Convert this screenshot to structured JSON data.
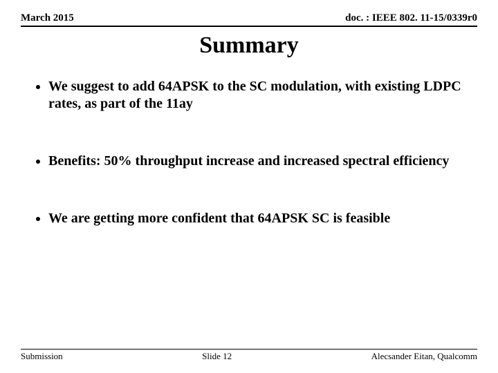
{
  "header": {
    "left": "March 2015",
    "right": "doc. : IEEE 802. 11-15/0339r0"
  },
  "title": "Summary",
  "bullets": [
    "We suggest to add 64APSK to the SC modulation, with existing LDPC rates, as part of the 11ay",
    "Benefits: 50% throughput increase and increased spectral efficiency",
    "We are getting more confident that 64APSK SC is feasible"
  ],
  "footer": {
    "left": "Submission",
    "center": "Slide 12",
    "right": "Alecsander Eitan, Qualcomm"
  }
}
